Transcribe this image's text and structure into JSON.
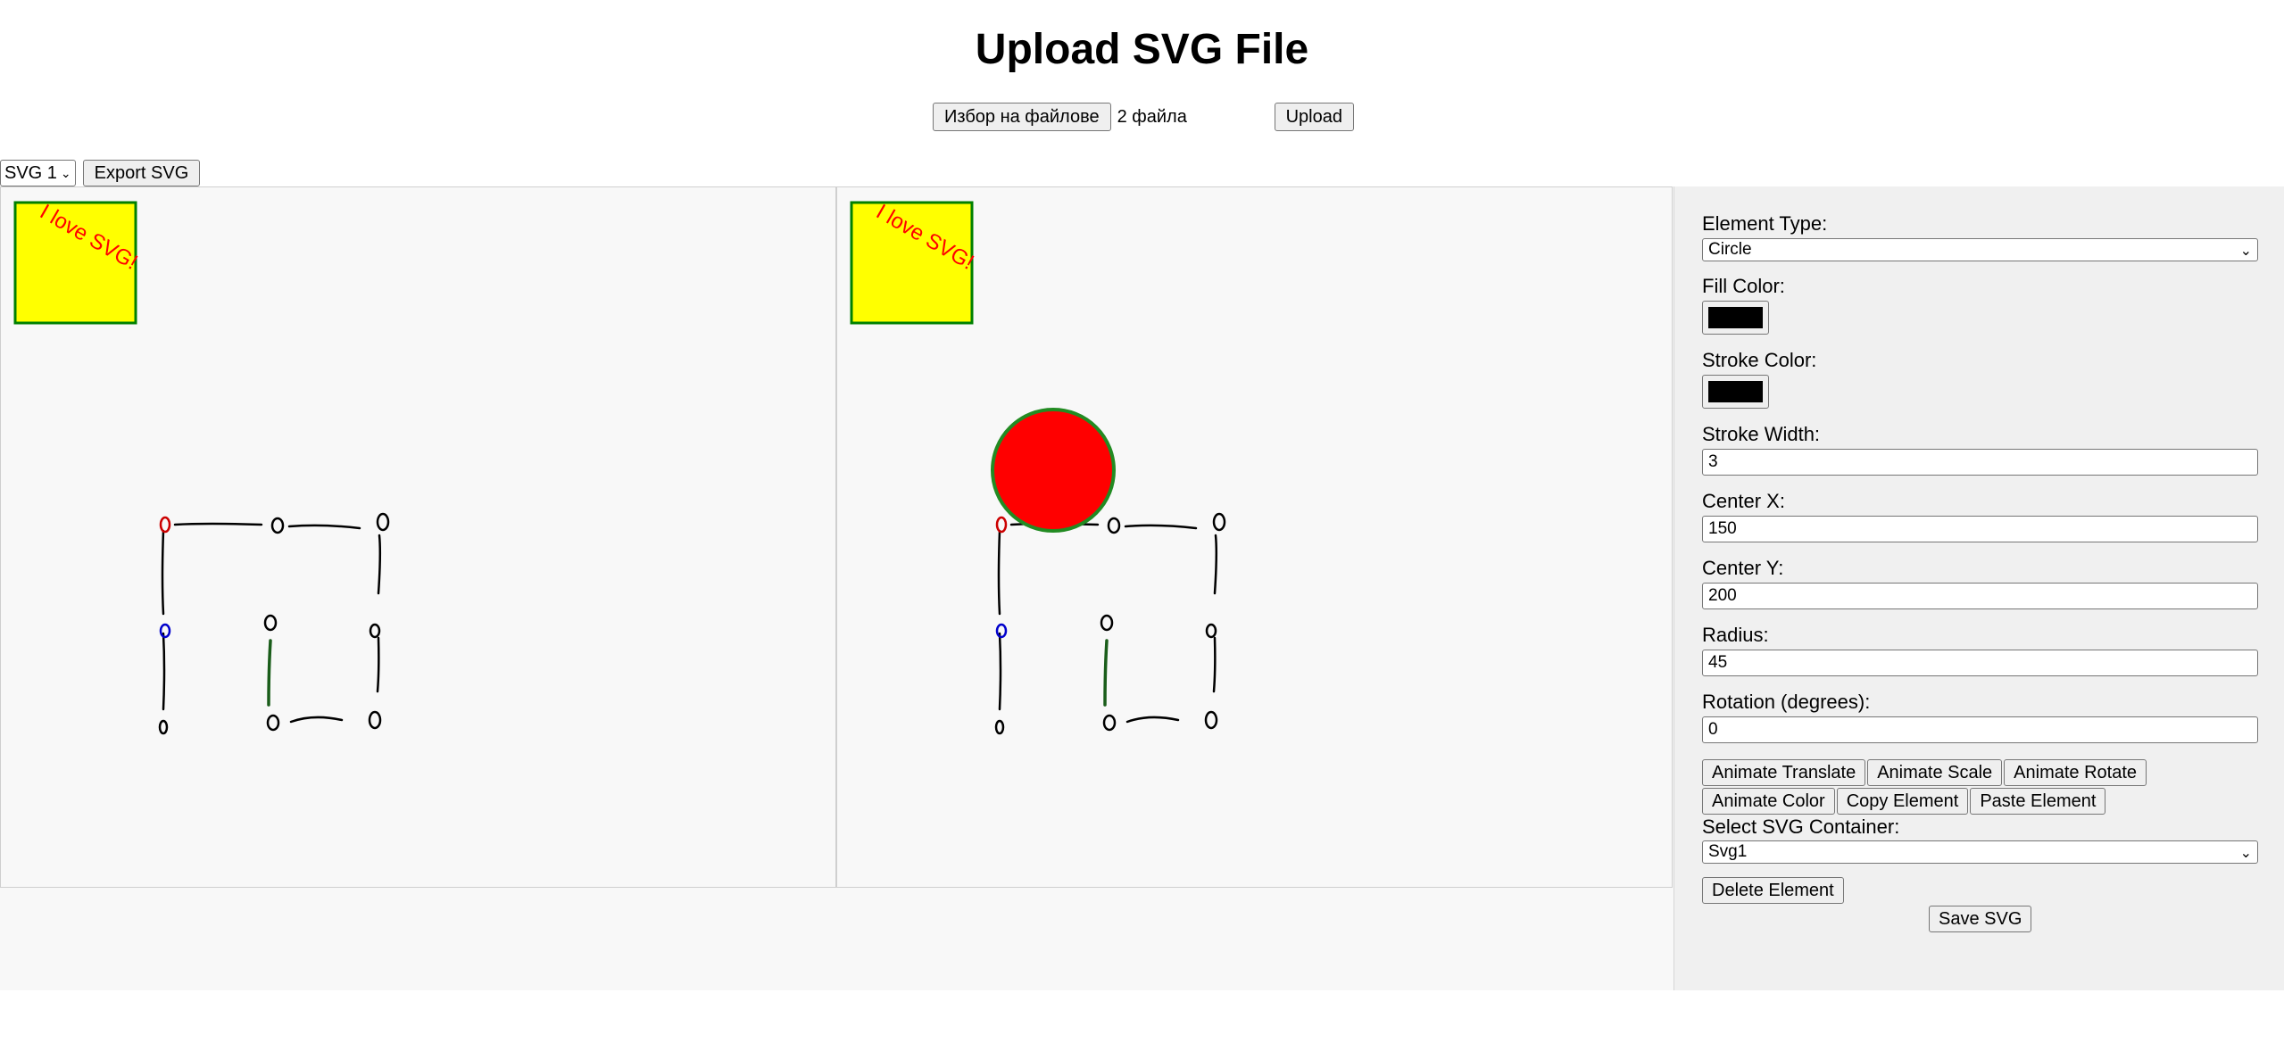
{
  "page": {
    "title": "Upload SVG File"
  },
  "upload": {
    "choose_label": "Избор на файлове",
    "file_status": "2 файла",
    "upload_label": "Upload"
  },
  "toolbar": {
    "svg_select_value": "SVG 1",
    "export_label": "Export SVG"
  },
  "canvas": {
    "badge_text": "I love SVG!",
    "badge_fill": "#ffff00",
    "badge_stroke": "#008000",
    "badge_text_color": "#ff0000",
    "circle_fill": "#ff0000",
    "circle_stroke": "#228b22"
  },
  "panel": {
    "element_type_label": "Element Type:",
    "element_type_value": "Circle",
    "fill_color_label": "Fill Color:",
    "fill_color": "#000000",
    "stroke_color_label": "Stroke Color:",
    "stroke_color": "#000000",
    "stroke_width_label": "Stroke Width:",
    "stroke_width_value": "3",
    "center_x_label": "Center X:",
    "center_x_value": "150",
    "center_y_label": "Center Y:",
    "center_y_value": "200",
    "radius_label": "Radius:",
    "radius_value": "45",
    "rotation_label": "Rotation (degrees):",
    "rotation_value": "0",
    "buttons_row1": [
      "Animate Translate",
      "Animate Scale",
      "Animate Rotate"
    ],
    "buttons_row2": [
      "Animate Color",
      "Copy Element",
      "Paste Element"
    ],
    "container_label": "Select SVG Container:",
    "container_value": "Svg1",
    "delete_label": "Delete Element",
    "save_label": "Save SVG"
  }
}
